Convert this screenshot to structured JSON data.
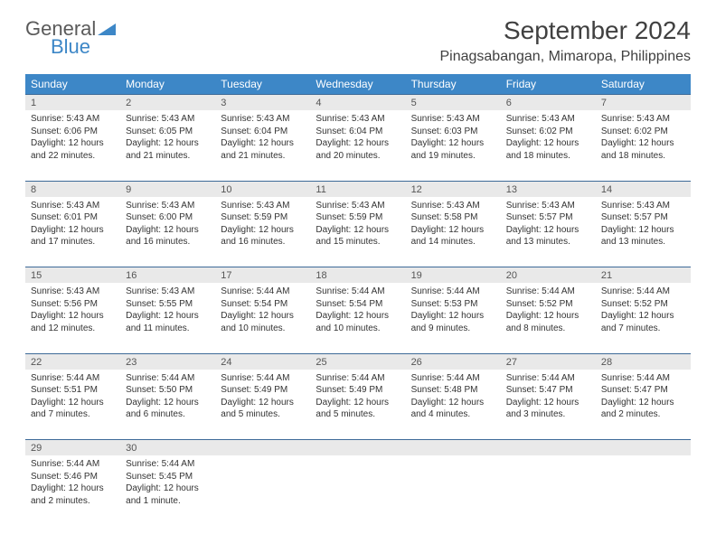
{
  "logo": {
    "line1": "General",
    "line2": "Blue"
  },
  "title": "September 2024",
  "location": "Pinagsabangan, Mimaropa, Philippines",
  "weekdays": [
    "Sunday",
    "Monday",
    "Tuesday",
    "Wednesday",
    "Thursday",
    "Friday",
    "Saturday"
  ],
  "colors": {
    "header_bg": "#3d87c7",
    "header_text": "#ffffff",
    "daynum_bg": "#e9e9e9",
    "rule": "#3d6a98",
    "text": "#333333"
  },
  "weeks": [
    [
      {
        "n": "1",
        "sr": "Sunrise: 5:43 AM",
        "ss": "Sunset: 6:06 PM",
        "d1": "Daylight: 12 hours",
        "d2": "and 22 minutes."
      },
      {
        "n": "2",
        "sr": "Sunrise: 5:43 AM",
        "ss": "Sunset: 6:05 PM",
        "d1": "Daylight: 12 hours",
        "d2": "and 21 minutes."
      },
      {
        "n": "3",
        "sr": "Sunrise: 5:43 AM",
        "ss": "Sunset: 6:04 PM",
        "d1": "Daylight: 12 hours",
        "d2": "and 21 minutes."
      },
      {
        "n": "4",
        "sr": "Sunrise: 5:43 AM",
        "ss": "Sunset: 6:04 PM",
        "d1": "Daylight: 12 hours",
        "d2": "and 20 minutes."
      },
      {
        "n": "5",
        "sr": "Sunrise: 5:43 AM",
        "ss": "Sunset: 6:03 PM",
        "d1": "Daylight: 12 hours",
        "d2": "and 19 minutes."
      },
      {
        "n": "6",
        "sr": "Sunrise: 5:43 AM",
        "ss": "Sunset: 6:02 PM",
        "d1": "Daylight: 12 hours",
        "d2": "and 18 minutes."
      },
      {
        "n": "7",
        "sr": "Sunrise: 5:43 AM",
        "ss": "Sunset: 6:02 PM",
        "d1": "Daylight: 12 hours",
        "d2": "and 18 minutes."
      }
    ],
    [
      {
        "n": "8",
        "sr": "Sunrise: 5:43 AM",
        "ss": "Sunset: 6:01 PM",
        "d1": "Daylight: 12 hours",
        "d2": "and 17 minutes."
      },
      {
        "n": "9",
        "sr": "Sunrise: 5:43 AM",
        "ss": "Sunset: 6:00 PM",
        "d1": "Daylight: 12 hours",
        "d2": "and 16 minutes."
      },
      {
        "n": "10",
        "sr": "Sunrise: 5:43 AM",
        "ss": "Sunset: 5:59 PM",
        "d1": "Daylight: 12 hours",
        "d2": "and 16 minutes."
      },
      {
        "n": "11",
        "sr": "Sunrise: 5:43 AM",
        "ss": "Sunset: 5:59 PM",
        "d1": "Daylight: 12 hours",
        "d2": "and 15 minutes."
      },
      {
        "n": "12",
        "sr": "Sunrise: 5:43 AM",
        "ss": "Sunset: 5:58 PM",
        "d1": "Daylight: 12 hours",
        "d2": "and 14 minutes."
      },
      {
        "n": "13",
        "sr": "Sunrise: 5:43 AM",
        "ss": "Sunset: 5:57 PM",
        "d1": "Daylight: 12 hours",
        "d2": "and 13 minutes."
      },
      {
        "n": "14",
        "sr": "Sunrise: 5:43 AM",
        "ss": "Sunset: 5:57 PM",
        "d1": "Daylight: 12 hours",
        "d2": "and 13 minutes."
      }
    ],
    [
      {
        "n": "15",
        "sr": "Sunrise: 5:43 AM",
        "ss": "Sunset: 5:56 PM",
        "d1": "Daylight: 12 hours",
        "d2": "and 12 minutes."
      },
      {
        "n": "16",
        "sr": "Sunrise: 5:43 AM",
        "ss": "Sunset: 5:55 PM",
        "d1": "Daylight: 12 hours",
        "d2": "and 11 minutes."
      },
      {
        "n": "17",
        "sr": "Sunrise: 5:44 AM",
        "ss": "Sunset: 5:54 PM",
        "d1": "Daylight: 12 hours",
        "d2": "and 10 minutes."
      },
      {
        "n": "18",
        "sr": "Sunrise: 5:44 AM",
        "ss": "Sunset: 5:54 PM",
        "d1": "Daylight: 12 hours",
        "d2": "and 10 minutes."
      },
      {
        "n": "19",
        "sr": "Sunrise: 5:44 AM",
        "ss": "Sunset: 5:53 PM",
        "d1": "Daylight: 12 hours",
        "d2": "and 9 minutes."
      },
      {
        "n": "20",
        "sr": "Sunrise: 5:44 AM",
        "ss": "Sunset: 5:52 PM",
        "d1": "Daylight: 12 hours",
        "d2": "and 8 minutes."
      },
      {
        "n": "21",
        "sr": "Sunrise: 5:44 AM",
        "ss": "Sunset: 5:52 PM",
        "d1": "Daylight: 12 hours",
        "d2": "and 7 minutes."
      }
    ],
    [
      {
        "n": "22",
        "sr": "Sunrise: 5:44 AM",
        "ss": "Sunset: 5:51 PM",
        "d1": "Daylight: 12 hours",
        "d2": "and 7 minutes."
      },
      {
        "n": "23",
        "sr": "Sunrise: 5:44 AM",
        "ss": "Sunset: 5:50 PM",
        "d1": "Daylight: 12 hours",
        "d2": "and 6 minutes."
      },
      {
        "n": "24",
        "sr": "Sunrise: 5:44 AM",
        "ss": "Sunset: 5:49 PM",
        "d1": "Daylight: 12 hours",
        "d2": "and 5 minutes."
      },
      {
        "n": "25",
        "sr": "Sunrise: 5:44 AM",
        "ss": "Sunset: 5:49 PM",
        "d1": "Daylight: 12 hours",
        "d2": "and 5 minutes."
      },
      {
        "n": "26",
        "sr": "Sunrise: 5:44 AM",
        "ss": "Sunset: 5:48 PM",
        "d1": "Daylight: 12 hours",
        "d2": "and 4 minutes."
      },
      {
        "n": "27",
        "sr": "Sunrise: 5:44 AM",
        "ss": "Sunset: 5:47 PM",
        "d1": "Daylight: 12 hours",
        "d2": "and 3 minutes."
      },
      {
        "n": "28",
        "sr": "Sunrise: 5:44 AM",
        "ss": "Sunset: 5:47 PM",
        "d1": "Daylight: 12 hours",
        "d2": "and 2 minutes."
      }
    ],
    [
      {
        "n": "29",
        "sr": "Sunrise: 5:44 AM",
        "ss": "Sunset: 5:46 PM",
        "d1": "Daylight: 12 hours",
        "d2": "and 2 minutes."
      },
      {
        "n": "30",
        "sr": "Sunrise: 5:44 AM",
        "ss": "Sunset: 5:45 PM",
        "d1": "Daylight: 12 hours",
        "d2": "and 1 minute."
      },
      {
        "n": "",
        "sr": "",
        "ss": "",
        "d1": "",
        "d2": ""
      },
      {
        "n": "",
        "sr": "",
        "ss": "",
        "d1": "",
        "d2": ""
      },
      {
        "n": "",
        "sr": "",
        "ss": "",
        "d1": "",
        "d2": ""
      },
      {
        "n": "",
        "sr": "",
        "ss": "",
        "d1": "",
        "d2": ""
      },
      {
        "n": "",
        "sr": "",
        "ss": "",
        "d1": "",
        "d2": ""
      }
    ]
  ]
}
